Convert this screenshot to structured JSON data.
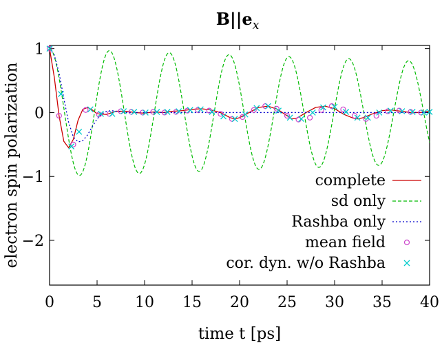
{
  "chart_data": {
    "type": "line",
    "title": "B||e",
    "title_subscript": "x",
    "xlabel": "time t [ps]",
    "ylabel": "electron spin polarization",
    "xlim": [
      0,
      40
    ],
    "ylim": [
      -2.7,
      1.05
    ],
    "x_ticks": [
      0,
      5,
      10,
      15,
      20,
      25,
      30,
      35,
      40
    ],
    "y_ticks": [
      1,
      0,
      -1,
      -2
    ],
    "x_tick_labels": [
      "0",
      "5",
      "10",
      "15",
      "20",
      "25",
      "30",
      "35",
      "40"
    ],
    "y_tick_labels": [
      "1",
      "0",
      "−1",
      "−2"
    ],
    "grid": false,
    "legend_position": "bottom-right",
    "series": [
      {
        "name": "complete",
        "style": "solid-line",
        "color": "#cc0000",
        "x": [
          0,
          0.5,
          1,
          1.5,
          2,
          2.5,
          3,
          3.5,
          4,
          4.5,
          5,
          6,
          7,
          8,
          9,
          10,
          11,
          12,
          13,
          14,
          15,
          16,
          17,
          18,
          19,
          19.5,
          20,
          21,
          22,
          23,
          24,
          25,
          25.5,
          26,
          27,
          28,
          29,
          30,
          31,
          32,
          32.5,
          33,
          34,
          35,
          36,
          37,
          38,
          39,
          40
        ],
        "y": [
          1,
          0.55,
          -0.05,
          -0.45,
          -0.55,
          -0.42,
          -0.12,
          0.05,
          0.08,
          0.04,
          -0.02,
          -0.03,
          0.02,
          0.02,
          0,
          -0.01,
          0.01,
          0,
          0.02,
          0.03,
          0.05,
          0.06,
          0.04,
          0,
          -0.08,
          -0.1,
          -0.08,
          0,
          0.08,
          0.1,
          0.05,
          -0.05,
          -0.1,
          -0.09,
          0,
          0.08,
          0.1,
          0.06,
          -0.03,
          -0.09,
          -0.1,
          -0.08,
          -0.02,
          0.03,
          0.04,
          0.02,
          0,
          0,
          0.02
        ]
      },
      {
        "name": "sd only",
        "style": "dashed-line",
        "color": "#00bb00",
        "model": "cosine",
        "amplitude_start": 1.0,
        "amplitude_end": 0.8,
        "period_ps": 6.3
      },
      {
        "name": "Rashba only",
        "style": "dotted-line",
        "color": "#0000cc",
        "x": [
          0,
          0.5,
          1,
          1.5,
          2,
          2.5,
          3,
          3.5,
          4,
          4.5,
          5,
          5.5,
          6,
          6.5,
          7,
          8,
          9,
          10,
          15,
          20,
          25,
          30,
          35,
          40
        ],
        "y": [
          1,
          0.9,
          0.62,
          0.22,
          -0.15,
          -0.38,
          -0.46,
          -0.44,
          -0.35,
          -0.22,
          -0.1,
          -0.02,
          0.02,
          0.03,
          0.02,
          0,
          0,
          0,
          0,
          0,
          0,
          0,
          0,
          0
        ]
      },
      {
        "name": "mean field",
        "style": "open-circle",
        "color": "#cc44cc",
        "x": [
          0,
          1,
          2.5,
          3.8,
          5.2,
          6.3,
          7.5,
          8.6,
          9.8,
          10.9,
          12.1,
          13.3,
          14.5,
          15.6,
          16.8,
          18.0,
          19.2,
          20.3,
          21.5,
          22.7,
          23.9,
          25.0,
          26.2,
          27.4,
          28.6,
          29.7,
          30.9,
          32.1,
          33.3,
          34.4,
          35.6,
          36.8,
          38.0,
          39.1
        ],
        "y": [
          1,
          -0.05,
          -0.5,
          0.04,
          -0.03,
          -0.02,
          0.02,
          0.01,
          0,
          0.01,
          0,
          0.01,
          0.03,
          0.04,
          0.03,
          -0.02,
          -0.1,
          -0.07,
          0.04,
          0.1,
          0.06,
          -0.05,
          -0.11,
          -0.08,
          0.04,
          0.1,
          0.05,
          -0.05,
          -0.1,
          -0.05,
          0.02,
          0.03,
          0.01,
          0
        ]
      },
      {
        "name": "cor. dyn. w/o Rashba",
        "style": "cross",
        "color": "#00cccc",
        "x": [
          0,
          1.2,
          2.3,
          3.1,
          4.3,
          5.4,
          6.6,
          7.8,
          8.9,
          10.1,
          11.3,
          12.4,
          13.6,
          14.8,
          15.9,
          17.1,
          18.3,
          19.5,
          20.6,
          21.8,
          23.0,
          24.1,
          25.3,
          26.5,
          27.7,
          28.8,
          30.0,
          31.2,
          32.4,
          33.5,
          34.7,
          35.9,
          37.1,
          38.2,
          39.4,
          40
        ],
        "y": [
          1,
          0.29,
          -0.53,
          -0.3,
          0.05,
          -0.02,
          -0.02,
          0.02,
          0.01,
          0,
          0.01,
          0.01,
          0.02,
          0.04,
          0.05,
          0.01,
          -0.06,
          -0.1,
          -0.03,
          0.07,
          0.1,
          0.03,
          -0.08,
          -0.1,
          0,
          0.08,
          0.09,
          0.01,
          -0.08,
          -0.08,
          0,
          0.03,
          0.02,
          0.01,
          0,
          0.01
        ]
      }
    ]
  }
}
